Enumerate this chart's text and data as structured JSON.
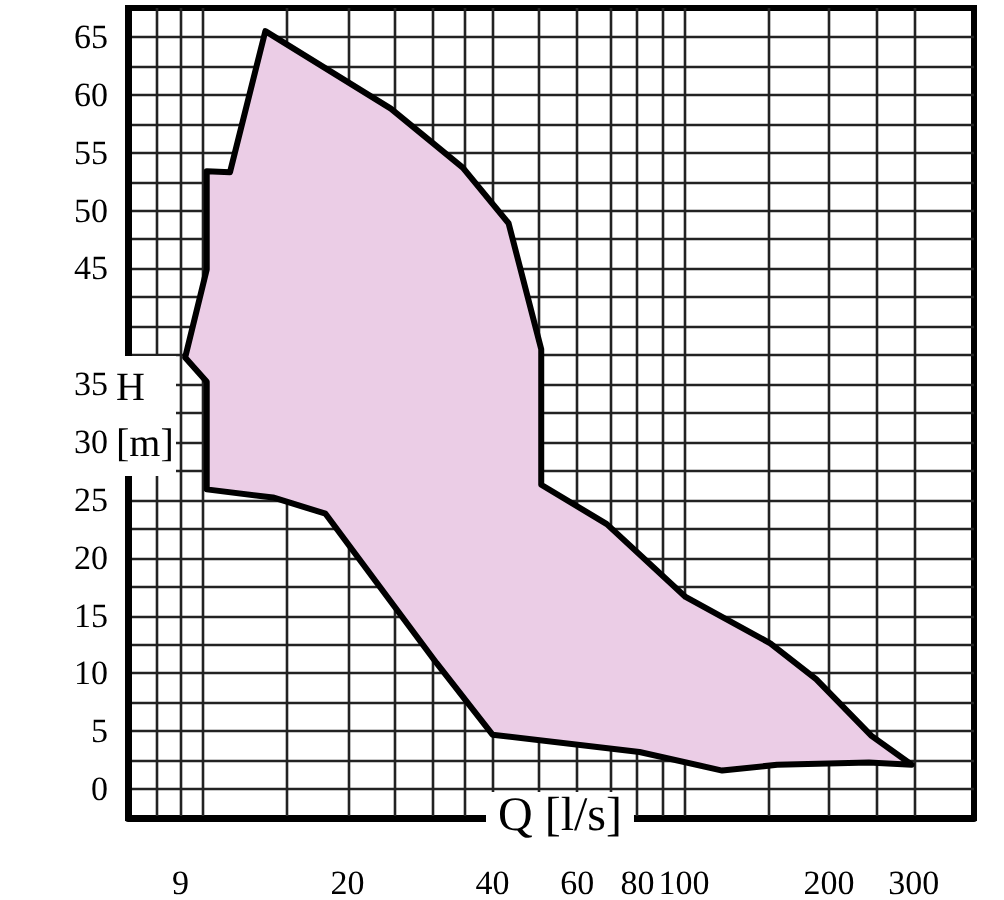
{
  "chart_data": {
    "type": "area",
    "xlabel": "Q [l/s]",
    "ylabel": "H [m]",
    "log": "x",
    "grid": true,
    "xlim": [
      7,
      400
    ],
    "xticks": [
      {
        "value": 8,
        "label": null
      },
      9,
      {
        "value": 10,
        "label": null
      },
      {
        "value": 15,
        "label": null
      },
      20,
      {
        "value": 25,
        "label": null
      },
      {
        "value": 30,
        "label": null
      },
      {
        "value": 35,
        "label": null
      },
      40,
      {
        "value": 50,
        "label": null
      },
      60,
      {
        "value": 70,
        "label": null
      },
      80,
      {
        "value": 90,
        "label": null
      },
      100,
      {
        "value": 150,
        "label": null
      },
      200,
      {
        "value": 250,
        "label": null
      },
      300
    ],
    "ylim": [
      -2.5,
      67.5
    ],
    "yticks": [
      0,
      {
        "value": 2.5,
        "label": null
      },
      5,
      {
        "value": 7.5,
        "label": null
      },
      10,
      {
        "value": 12.5,
        "label": null
      },
      15,
      {
        "value": 17.5,
        "label": null
      },
      20,
      {
        "value": 22.5,
        "label": null
      },
      25,
      {
        "value": 27.5,
        "label": null
      },
      30,
      {
        "value": 32.5,
        "label": null
      },
      35,
      {
        "value": 37.5,
        "label": null
      },
      {
        "value": 40,
        "label": null
      },
      {
        "value": 42.5,
        "label": null
      },
      45,
      {
        "value": 47.5,
        "label": null
      },
      50,
      {
        "value": 52.5,
        "label": null
      },
      55,
      {
        "value": 57.5,
        "label": null
      },
      60,
      {
        "value": 62.5,
        "label": null
      },
      65
    ],
    "series": [
      {
        "color": "#ebcde6",
        "x": [
          13.5,
          24.6,
          34.7,
          43.2,
          50.5,
          50.5,
          69.1,
          100.7,
          151,
          188,
          245,
          297,
          242,
          156,
          120,
          80.8,
          40.0,
          30.6,
          18.0,
          14.0,
          10.2,
          10.2,
          9.2,
          10.2,
          10.2,
          11.4
        ],
        "values": [
          65.5,
          58.8,
          53.7,
          48.9,
          38.0,
          26.3,
          22.9,
          16.6,
          12.6,
          9.5,
          4.6,
          2.1,
          2.3,
          2.1,
          1.6,
          3.2,
          4.7,
          10.9,
          23.8,
          25.2,
          25.9,
          35.2,
          37.3,
          44.9,
          53.4,
          53.3
        ]
      }
    ]
  }
}
